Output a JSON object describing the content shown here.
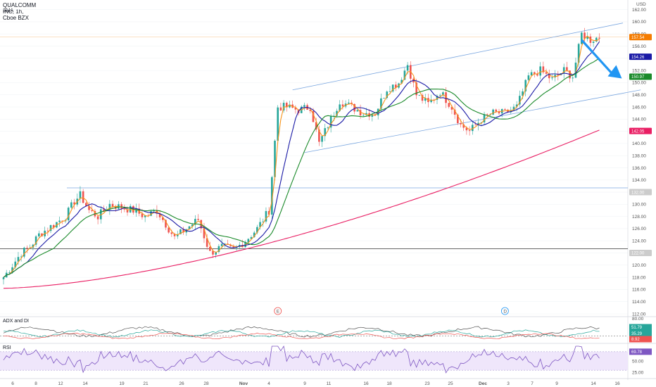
{
  "header": {
    "symbol_line": "QUALCOMM INC, 1h, Cboe BZX",
    "indicator": "SMA"
  },
  "currency": "USD",
  "colors": {
    "up": "#26a69a",
    "down": "#ef5350",
    "sma_fast": "#f7931a",
    "sma_mid": "#1a1aa6",
    "sma_slow": "#1a8a2a",
    "sma_long": "#e91e63",
    "channel": "#7ba7e0",
    "hline": "#333333",
    "arrow": "#2196f3",
    "adx": "#555555",
    "plus_di": "#26a69a",
    "minus_di": "#ef5350",
    "rsi": "#7e57c2",
    "rsi_band": "#efe6fb"
  },
  "chart_data": {
    "type": "candlestick",
    "yaxis": {
      "min": 112,
      "max": 163,
      "ticks": [
        "162.00",
        "160.00",
        "158.00",
        "156.00",
        "154.00",
        "152.00",
        "150.00",
        "148.00",
        "146.00",
        "144.00",
        "142.00",
        "140.00",
        "138.00",
        "136.00",
        "134.00",
        "132.00",
        "130.00",
        "128.00",
        "126.00",
        "124.00",
        "122.00",
        "120.00",
        "118.00",
        "116.00",
        "114.00",
        "112.00"
      ]
    },
    "xaxis": {
      "labels": [
        "6",
        "8",
        "12",
        "14",
        "19",
        "21",
        "26",
        "28",
        "Nov",
        "4",
        "9",
        "11",
        "16",
        "18",
        "23",
        "25",
        "Dec",
        "3",
        "7",
        "9",
        "14",
        "16"
      ]
    },
    "key_points": [
      {
        "x": 0,
        "y": 118
      },
      {
        "x": 3,
        "y": 120
      },
      {
        "x": 6,
        "y": 122
      },
      {
        "x": 9,
        "y": 123
      },
      {
        "x": 12,
        "y": 125
      },
      {
        "x": 15,
        "y": 126
      },
      {
        "x": 18,
        "y": 127
      },
      {
        "x": 21,
        "y": 128
      },
      {
        "x": 24,
        "y": 130.5
      },
      {
        "x": 26,
        "y": 131.5
      },
      {
        "x": 29,
        "y": 129
      },
      {
        "x": 32,
        "y": 128
      },
      {
        "x": 36,
        "y": 130
      },
      {
        "x": 40,
        "y": 129.5
      },
      {
        "x": 44,
        "y": 129
      },
      {
        "x": 48,
        "y": 128
      },
      {
        "x": 52,
        "y": 129
      },
      {
        "x": 56,
        "y": 126
      },
      {
        "x": 58,
        "y": 124.5
      },
      {
        "x": 62,
        "y": 126
      },
      {
        "x": 66,
        "y": 127.5
      },
      {
        "x": 70,
        "y": 122
      },
      {
        "x": 74,
        "y": 123
      },
      {
        "x": 78,
        "y": 122.5
      },
      {
        "x": 82,
        "y": 124
      },
      {
        "x": 86,
        "y": 126
      },
      {
        "x": 90,
        "y": 129
      },
      {
        "x": 93,
        "y": 146
      },
      {
        "x": 96,
        "y": 146
      },
      {
        "x": 100,
        "y": 145.5
      },
      {
        "x": 104,
        "y": 146
      },
      {
        "x": 107,
        "y": 140
      },
      {
        "x": 110,
        "y": 143
      },
      {
        "x": 114,
        "y": 147
      },
      {
        "x": 118,
        "y": 146
      },
      {
        "x": 122,
        "y": 145
      },
      {
        "x": 126,
        "y": 145
      },
      {
        "x": 130,
        "y": 149
      },
      {
        "x": 134,
        "y": 150
      },
      {
        "x": 137,
        "y": 153
      },
      {
        "x": 140,
        "y": 148
      },
      {
        "x": 144,
        "y": 146.5
      },
      {
        "x": 148,
        "y": 148.5
      },
      {
        "x": 152,
        "y": 146
      },
      {
        "x": 155,
        "y": 143
      },
      {
        "x": 158,
        "y": 142
      },
      {
        "x": 162,
        "y": 144
      },
      {
        "x": 166,
        "y": 145
      },
      {
        "x": 170,
        "y": 145
      },
      {
        "x": 174,
        "y": 146
      },
      {
        "x": 178,
        "y": 151
      },
      {
        "x": 182,
        "y": 152
      },
      {
        "x": 186,
        "y": 150.5
      },
      {
        "x": 190,
        "y": 152
      },
      {
        "x": 193,
        "y": 151
      },
      {
        "x": 196,
        "y": 158
      },
      {
        "x": 199,
        "y": 157
      },
      {
        "x": 202,
        "y": 157.5
      }
    ],
    "price_tags": [
      {
        "text": "157.54",
        "color": "#f57c00"
      },
      {
        "text": "154.26",
        "color": "#1a1aa6"
      },
      {
        "text": "150.97",
        "color": "#1a8a2a"
      },
      {
        "text": "142.05",
        "color": "#e91e63"
      },
      {
        "text": "132.00",
        "color": "#cccccc"
      },
      {
        "text": "122.00",
        "color": "#cccccc"
      }
    ],
    "horizontal_lines": [
      {
        "y": 132.7
      },
      {
        "y": 122.7
      }
    ],
    "channel": [
      {
        "x1": 98,
        "y1": 148.8,
        "x2": 210,
        "y2": 159.8
      },
      {
        "x1": 102,
        "y1": 138.5,
        "x2": 216,
        "y2": 148.8
      }
    ],
    "event_markers": [
      {
        "text": "E"
      },
      {
        "text": "D"
      }
    ]
  },
  "adx": {
    "title": "ADX and DI",
    "ticks": [
      "80.00"
    ],
    "tags": [
      "51.79",
      "35.29",
      "8.92"
    ]
  },
  "rsi": {
    "title": "RSI",
    "ticks": [
      "50.00",
      "25.00"
    ],
    "tags": [
      "69.78"
    ]
  }
}
